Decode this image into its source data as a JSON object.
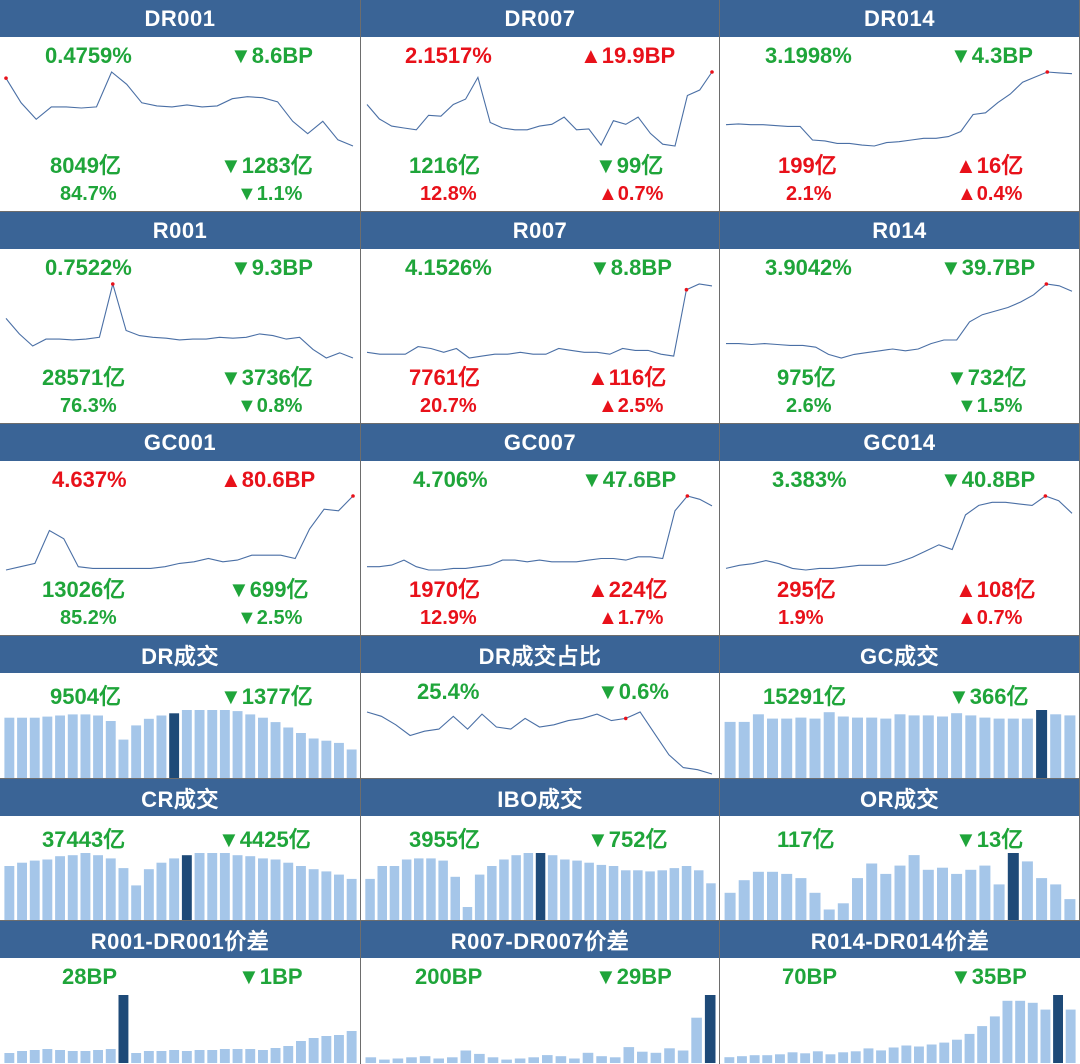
{
  "colors": {
    "header_bg": "#3a6496",
    "up": "#e8111a",
    "down": "#1fa53a",
    "line": "#4a6fa5",
    "bar": "#a5c6e9",
    "bar_highlight": "#1e4a78",
    "marker": "#e8111a"
  },
  "line_panels": [
    {
      "title": "DR001",
      "rate": "0.4759%",
      "rate_dir": "down",
      "rate_chg": "▼8.6BP",
      "amount": "8049亿",
      "amount_dir": "down",
      "amount_chg": "▼1283亿",
      "share": "84.7%",
      "share_dir": "down",
      "share_chg": "▼1.1%",
      "chart_data": {
        "type": "line",
        "series": [
          {
            "values": [
              72,
              48,
              32,
              44,
              44,
              43,
              44,
              78,
              66,
              48,
              45,
              44,
              46,
              44,
              45,
              52,
              54,
              53,
              49,
              30,
              18,
              30,
              12,
              6
            ]
          }
        ],
        "highlight_index": 0
      }
    },
    {
      "title": "DR007",
      "rate": "2.1517%",
      "rate_dir": "up",
      "rate_chg": "▲19.9BP",
      "amount": "1216亿",
      "amount_dir": "down",
      "amount_chg": "▼99亿",
      "share": "12.8%",
      "share_dir": "up",
      "share_chg": "▲0.7%",
      "chart_data": {
        "type": "line",
        "series": [
          {
            "values": [
              50,
              34,
              26,
              24,
              22,
              38,
              37,
              50,
              56,
              80,
              30,
              24,
              22,
              22,
              26,
              28,
              36,
              22,
              23,
              5,
              32,
              28,
              36,
              18,
              6,
              4,
              60,
              66,
              86
            ]
          }
        ],
        "highlight_index": 28
      }
    },
    {
      "title": "DR014",
      "rate": "3.1998%",
      "rate_dir": "down",
      "rate_chg": "▼4.3BP",
      "amount": "199亿",
      "amount_dir": "up",
      "amount_chg": "▲16亿",
      "share": "2.1%",
      "share_dir": "up",
      "share_chg": "▲0.4%",
      "chart_data": {
        "type": "line",
        "series": [
          {
            "values": [
              30,
              31,
              30,
              30,
              29,
              28,
              28,
              12,
              11,
              8,
              8,
              6,
              5,
              9,
              10,
              12,
              14,
              14,
              16,
              22,
              42,
              44,
              56,
              66,
              80,
              86,
              92,
              91,
              90
            ]
          }
        ],
        "highlight_index": 26
      }
    },
    {
      "title": "R001",
      "rate": "0.7522%",
      "rate_dir": "down",
      "rate_chg": "▼9.3BP",
      "amount": "28571亿",
      "amount_dir": "down",
      "amount_chg": "▼3736亿",
      "share": "76.3%",
      "share_dir": "down",
      "share_chg": "▼0.8%",
      "chart_data": {
        "type": "line",
        "series": [
          {
            "values": [
              50,
              32,
              18,
              26,
              26,
              25,
              26,
              28,
              90,
              36,
              30,
              28,
              27,
              25,
              26,
              26,
              28,
              27,
              28,
              32,
              30,
              26,
              28,
              14,
              4,
              10,
              4
            ]
          }
        ],
        "highlight_index": 8
      }
    },
    {
      "title": "R007",
      "rate": "4.1526%",
      "rate_dir": "down",
      "rate_chg": "▼8.8BP",
      "amount": "7761亿",
      "amount_dir": "up",
      "amount_chg": "▲116亿",
      "share": "20.7%",
      "share_dir": "up",
      "share_chg": "▲2.5%",
      "chart_data": {
        "type": "line",
        "series": [
          {
            "values": [
              10,
              8,
              8,
              8,
              16,
              14,
              10,
              14,
              4,
              6,
              8,
              8,
              10,
              8,
              8,
              14,
              12,
              10,
              10,
              8,
              14,
              12,
              12,
              8,
              6,
              76,
              82,
              80
            ]
          }
        ],
        "highlight_index": 25
      }
    },
    {
      "title": "R014",
      "rate": "3.9042%",
      "rate_dir": "down",
      "rate_chg": "▼39.7BP",
      "amount": "975亿",
      "amount_dir": "down",
      "amount_chg": "▼732亿",
      "share": "2.6%",
      "share_dir": "down",
      "share_chg": "▼1.5%",
      "chart_data": {
        "type": "line",
        "series": [
          {
            "values": [
              22,
              22,
              21,
              22,
              21,
              20,
              20,
              18,
              10,
              6,
              10,
              12,
              14,
              16,
              14,
              16,
              22,
              26,
              26,
              46,
              54,
              58,
              62,
              68,
              76,
              88,
              86,
              80
            ]
          }
        ],
        "highlight_index": 25
      }
    },
    {
      "title": "GC001",
      "rate": "4.637%",
      "rate_dir": "up",
      "rate_chg": "▲80.6BP",
      "amount": "13026亿",
      "amount_dir": "down",
      "amount_chg": "▼699亿",
      "share": "85.2%",
      "share_dir": "down",
      "share_chg": "▼2.5%",
      "chart_data": {
        "type": "line",
        "series": [
          {
            "values": [
              6,
              10,
              14,
              54,
              44,
              10,
              8,
              8,
              8,
              8,
              8,
              10,
              14,
              16,
              20,
              16,
              18,
              24,
              24,
              24,
              20,
              56,
              80,
              78,
              96
            ]
          }
        ],
        "highlight_index": 24
      }
    },
    {
      "title": "GC007",
      "rate": "4.706%",
      "rate_dir": "down",
      "rate_chg": "▼47.6BP",
      "amount": "1970亿",
      "amount_dir": "up",
      "amount_chg": "▲224亿",
      "share": "12.9%",
      "share_dir": "up",
      "share_chg": "▲1.7%",
      "chart_data": {
        "type": "line",
        "series": [
          {
            "values": [
              12,
              12,
              14,
              20,
              12,
              8,
              8,
              10,
              10,
              12,
              14,
              20,
              20,
              18,
              20,
              18,
              18,
              18,
              20,
              22,
              22,
              20,
              24,
              24,
              22,
              80,
              98,
              94,
              86
            ]
          }
        ],
        "highlight_index": 26
      }
    },
    {
      "title": "GC014",
      "rate": "3.383%",
      "rate_dir": "down",
      "rate_chg": "▼40.8BP",
      "amount": "295亿",
      "amount_dir": "up",
      "amount_chg": "▲108亿",
      "share": "1.9%",
      "share_dir": "up",
      "share_chg": "▲0.7%",
      "chart_data": {
        "type": "line",
        "series": [
          {
            "values": [
              6,
              10,
              12,
              16,
              12,
              6,
              4,
              6,
              6,
              8,
              10,
              10,
              10,
              14,
              20,
              28,
              36,
              30,
              74,
              86,
              90,
              90,
              88,
              86,
              98,
              92,
              76
            ]
          }
        ],
        "highlight_index": 24
      }
    }
  ],
  "bottom_panels": [
    {
      "title": "DR成交",
      "amount": "9504亿",
      "amount_dir": "down",
      "amount_chg": "▼1377亿",
      "chart_data": {
        "type": "bar",
        "values": [
          55,
          55,
          55,
          56,
          57,
          58,
          58,
          57,
          52,
          35,
          48,
          54,
          57,
          59,
          62,
          62,
          62,
          62,
          61,
          58,
          55,
          51,
          46,
          41,
          36,
          34,
          32,
          26
        ],
        "highlight_index": 13
      }
    },
    {
      "title": "DR成交占比",
      "amount": "25.4%",
      "amount_dir": "down",
      "amount_chg": "▼0.6%",
      "chart_data": {
        "type": "line",
        "series": [
          {
            "values": [
              58,
              54,
              46,
              36,
              40,
              42,
              54,
              42,
              56,
              44,
              42,
              52,
              44,
              46,
              50,
              52,
              56,
              50,
              52,
              58,
              38,
              18,
              6,
              4,
              0
            ]
          }
        ],
        "highlight_index": 18
      }
    },
    {
      "title": "GC成交",
      "amount": "15291亿",
      "amount_dir": "down",
      "amount_chg": "▼366亿",
      "chart_data": {
        "type": "bar",
        "values": [
          52,
          52,
          59,
          55,
          55,
          56,
          55,
          61,
          57,
          56,
          56,
          55,
          59,
          58,
          58,
          57,
          60,
          58,
          56,
          55,
          55,
          55,
          63,
          59,
          58
        ],
        "highlight_index": 22
      }
    },
    {
      "title": "CR成交",
      "amount": "37443亿",
      "amount_dir": "down",
      "amount_chg": "▼4425亿",
      "chart_data": {
        "type": "bar",
        "values": [
          50,
          53,
          55,
          56,
          59,
          60,
          62,
          60,
          57,
          48,
          32,
          47,
          53,
          57,
          60,
          62,
          62,
          62,
          60,
          59,
          57,
          56,
          53,
          50,
          47,
          45,
          42,
          38
        ],
        "highlight_index": 14
      }
    },
    {
      "title": "IBO成交",
      "amount": "3955亿",
      "amount_dir": "down",
      "amount_chg": "▼752亿",
      "chart_data": {
        "type": "bar",
        "values": [
          38,
          50,
          50,
          56,
          57,
          57,
          55,
          40,
          12,
          42,
          50,
          56,
          60,
          62,
          62,
          60,
          56,
          55,
          53,
          51,
          50,
          46,
          46,
          45,
          46,
          48,
          50,
          46,
          34
        ],
        "highlight_index": 14
      }
    },
    {
      "title": "OR成交",
      "amount": "117亿",
      "amount_dir": "down",
      "amount_chg": "▼13亿",
      "chart_data": {
        "type": "bar",
        "values": [
          26,
          38,
          46,
          46,
          44,
          40,
          26,
          10,
          16,
          40,
          54,
          44,
          52,
          62,
          48,
          50,
          44,
          48,
          52,
          34,
          64,
          56,
          40,
          34,
          20
        ],
        "highlight_index": 20
      }
    }
  ],
  "spread_panels": [
    {
      "title": "R001-DR001价差",
      "amount": "28BP",
      "amount_dir": "none",
      "amount_chg": "▼1BP",
      "chart_data": {
        "type": "bar",
        "values": [
          10,
          12,
          13,
          14,
          13,
          12,
          12,
          13,
          14,
          68,
          10,
          12,
          12,
          13,
          12,
          13,
          13,
          14,
          14,
          14,
          13,
          15,
          17,
          22,
          25,
          27,
          28,
          32
        ],
        "highlight_index": 9
      }
    },
    {
      "title": "R007-DR007价差",
      "amount": "200BP",
      "amount_dir": "down",
      "amount_chg": "▼29BP",
      "chart_data": {
        "type": "bar",
        "values": [
          5,
          3,
          4,
          5,
          6,
          4,
          5,
          11,
          8,
          5,
          3,
          4,
          5,
          7,
          6,
          4,
          9,
          6,
          5,
          14,
          10,
          9,
          13,
          11,
          40,
          60
        ],
        "highlight_index": 25
      }
    },
    {
      "title": "R014-DR014价差",
      "amount": "70BP",
      "amount_dir": "down",
      "amount_chg": "▼35BP",
      "chart_data": {
        "type": "bar",
        "values": [
          6,
          7,
          8,
          8,
          9,
          11,
          10,
          12,
          9,
          11,
          12,
          15,
          13,
          16,
          18,
          17,
          19,
          21,
          24,
          30,
          38,
          48,
          64,
          64,
          62,
          55,
          70,
          55
        ],
        "highlight_index": 26
      }
    }
  ]
}
